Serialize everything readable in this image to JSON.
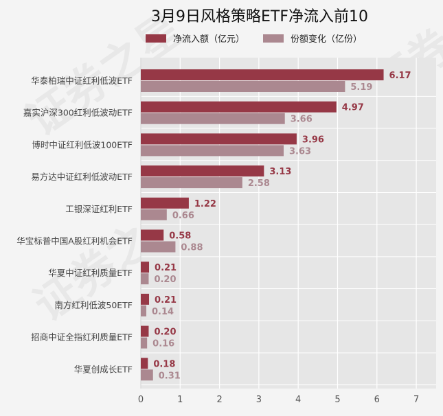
{
  "chart_data": {
    "type": "bar",
    "orientation": "horizontal",
    "title": "3月9日风格策略ETF净流入前10",
    "categories": [
      "华泰柏瑞中证红利低波ETF",
      "嘉实沪深300红利低波动ETF",
      "博时中证红利低波100ETF",
      "易方达中证红利低波动ETF",
      "工银深证红利ETF",
      "华宝标普中国A股红利机会ETF",
      "华夏中证红利质量ETF",
      "南方红利低波50ETF",
      "招商中证全指红利质量ETF",
      "华夏创成长ETF"
    ],
    "series": [
      {
        "name": "净流入额（亿元）",
        "color": "#963846",
        "values": [
          6.17,
          4.97,
          3.96,
          3.13,
          1.22,
          0.58,
          0.21,
          0.21,
          0.2,
          0.18
        ],
        "labels": [
          "6.17",
          "4.97",
          "3.96",
          "3.13",
          "1.22",
          "0.58",
          "0.21",
          "0.21",
          "0.20",
          "0.18"
        ]
      },
      {
        "name": "份额变化（亿份）",
        "color": "#ab8890",
        "values": [
          5.19,
          3.66,
          3.63,
          2.58,
          0.66,
          0.88,
          0.2,
          0.14,
          0.16,
          0.31
        ],
        "labels": [
          "5.19",
          "3.66",
          "3.63",
          "2.58",
          "0.66",
          "0.88",
          "0.20",
          "0.14",
          "0.16",
          "0.31"
        ]
      }
    ],
    "xlim": [
      0,
      7.5
    ],
    "xticks": [
      "0",
      "1",
      "2",
      "3",
      "4",
      "5",
      "6",
      "7"
    ],
    "grid": true,
    "legend_position": "top-center"
  },
  "watermark": "证券之星"
}
